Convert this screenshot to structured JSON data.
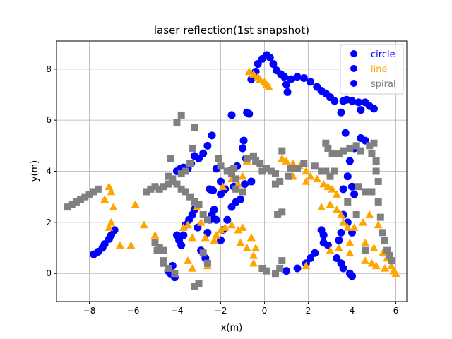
{
  "chart_data": {
    "type": "scatter",
    "title": "laser reflection(1st snapshot)",
    "xlabel": "x(m)",
    "ylabel": "y(m)",
    "xlim": [
      -9.5,
      6.5
    ],
    "ylim": [
      -1.1,
      9.1
    ],
    "xticks": [
      -8,
      -6,
      -4,
      -2,
      0,
      2,
      4,
      6
    ],
    "xtick_labels": [
      "−8",
      "−6",
      "−4",
      "−2",
      "0",
      "2",
      "4",
      "6"
    ],
    "yticks": [
      0,
      2,
      4,
      6,
      8
    ],
    "ytick_labels": [
      "0",
      "2",
      "4",
      "6",
      "8"
    ],
    "grid": true,
    "legend_position": "top-right",
    "series": [
      {
        "name": "circle",
        "marker": "circle",
        "color": "#0000ff",
        "legend_text_color": "#0000ff",
        "points": [
          [
            -7.8,
            0.75
          ],
          [
            -7.6,
            0.85
          ],
          [
            -7.4,
            1.0
          ],
          [
            -7.3,
            1.15
          ],
          [
            -7.1,
            1.35
          ],
          [
            -7.0,
            1.5
          ],
          [
            -6.85,
            1.7
          ],
          [
            -4.4,
            0.1
          ],
          [
            -4.3,
            0.0
          ],
          [
            -4.2,
            0.3
          ],
          [
            -4.1,
            -0.15
          ],
          [
            -4.0,
            1.5
          ],
          [
            -3.9,
            1.3
          ],
          [
            -3.8,
            1.1
          ],
          [
            -3.7,
            1.5
          ],
          [
            -3.6,
            1.9
          ],
          [
            -3.45,
            2.1
          ],
          [
            -3.3,
            2.3
          ],
          [
            -3.2,
            2.5
          ],
          [
            -3.05,
            1.8
          ],
          [
            -2.9,
            0.9
          ],
          [
            -2.7,
            0.6
          ],
          [
            -2.6,
            1.6
          ],
          [
            -2.5,
            2.1
          ],
          [
            -2.4,
            2.3
          ],
          [
            -2.3,
            2.5
          ],
          [
            -2.2,
            2.1
          ],
          [
            -2.0,
            1.3
          ],
          [
            -1.9,
            1.7
          ],
          [
            -1.7,
            2.1
          ],
          [
            -1.5,
            2.6
          ],
          [
            -1.3,
            2.8
          ],
          [
            -1.1,
            2.9
          ],
          [
            -4.0,
            4.0
          ],
          [
            -3.85,
            4.1
          ],
          [
            -3.7,
            4.15
          ],
          [
            -3.5,
            4.1
          ],
          [
            -3.35,
            4.3
          ],
          [
            -3.2,
            4.6
          ],
          [
            -3.0,
            4.5
          ],
          [
            -2.8,
            4.7
          ],
          [
            -2.6,
            5.0
          ],
          [
            -2.4,
            5.4
          ],
          [
            -2.2,
            4.1
          ],
          [
            -2.0,
            3.6
          ],
          [
            -1.8,
            3.3
          ],
          [
            -2.0,
            3.1
          ],
          [
            -1.6,
            4.0
          ],
          [
            -1.4,
            3.4
          ],
          [
            -1.25,
            4.2
          ],
          [
            -1.0,
            4.9
          ],
          [
            -0.95,
            5.2
          ],
          [
            -0.85,
            4.5
          ],
          [
            -2.5,
            3.3
          ],
          [
            -2.35,
            3.25
          ],
          [
            -1.5,
            6.2
          ],
          [
            -0.8,
            6.3
          ],
          [
            -0.7,
            6.25
          ],
          [
            -0.6,
            7.6
          ],
          [
            -0.4,
            7.9
          ],
          [
            -0.3,
            8.2
          ],
          [
            -0.1,
            8.4
          ],
          [
            0.1,
            8.55
          ],
          [
            0.25,
            8.45
          ],
          [
            0.4,
            8.2
          ],
          [
            0.55,
            7.95
          ],
          [
            0.75,
            7.8
          ],
          [
            0.9,
            7.7
          ],
          [
            1.0,
            7.4
          ],
          [
            1.05,
            7.1
          ],
          [
            1.2,
            7.6
          ],
          [
            1.5,
            7.7
          ],
          [
            1.8,
            7.65
          ],
          [
            2.1,
            7.5
          ],
          [
            2.4,
            7.3
          ],
          [
            2.6,
            7.15
          ],
          [
            2.8,
            7.05
          ],
          [
            3.0,
            6.9
          ],
          [
            3.2,
            6.75
          ],
          [
            3.5,
            6.3
          ],
          [
            3.6,
            6.75
          ],
          [
            3.75,
            6.8
          ],
          [
            4.0,
            6.75
          ],
          [
            4.3,
            6.7
          ],
          [
            4.6,
            6.7
          ],
          [
            4.8,
            6.55
          ],
          [
            5.0,
            6.45
          ],
          [
            4.4,
            6.4
          ],
          [
            3.7,
            5.5
          ],
          [
            4.4,
            5.3
          ],
          [
            4.6,
            5.2
          ],
          [
            4.1,
            4.9
          ],
          [
            3.9,
            4.4
          ],
          [
            3.8,
            3.8
          ],
          [
            3.6,
            3.3
          ],
          [
            4.0,
            3.4
          ],
          [
            4.1,
            3.1
          ],
          [
            3.6,
            2.3
          ],
          [
            3.8,
            2.0
          ],
          [
            4.0,
            1.6
          ],
          [
            3.5,
            1.6
          ],
          [
            3.4,
            1.3
          ],
          [
            3.3,
            0.6
          ],
          [
            3.5,
            0.4
          ],
          [
            3.6,
            0.2
          ],
          [
            3.9,
            0.0
          ],
          [
            4.0,
            -0.1
          ],
          [
            2.6,
            1.7
          ],
          [
            2.7,
            1.5
          ],
          [
            2.9,
            1.1
          ],
          [
            2.7,
            1.2
          ],
          [
            2.3,
            0.8
          ],
          [
            2.1,
            0.6
          ],
          [
            1.9,
            0.4
          ],
          [
            1.5,
            0.2
          ],
          [
            1.0,
            0.1
          ],
          [
            -0.9,
            3.5
          ],
          [
            -0.6,
            3.6
          ]
        ]
      },
      {
        "name": "line",
        "marker": "triangle",
        "color": "#ffa500",
        "legend_text_color": "#ffa500",
        "points": [
          [
            -7.3,
            2.9
          ],
          [
            -7.1,
            3.4
          ],
          [
            -7.0,
            3.2
          ],
          [
            -6.9,
            2.6
          ],
          [
            -7.0,
            2.0
          ],
          [
            -7.1,
            1.8
          ],
          [
            -6.6,
            1.1
          ],
          [
            -6.1,
            1.1
          ],
          [
            -5.9,
            2.7
          ],
          [
            -5.5,
            1.9
          ],
          [
            -5.0,
            1.5
          ],
          [
            -3.7,
            1.8
          ],
          [
            -3.5,
            1.9
          ],
          [
            -3.3,
            1.4
          ],
          [
            -3.1,
            2.6
          ],
          [
            -2.9,
            2.0
          ],
          [
            -2.7,
            1.4
          ],
          [
            -3.3,
            0.2
          ],
          [
            -3.5,
            0.5
          ],
          [
            -2.6,
            0.3
          ],
          [
            -2.3,
            1.3
          ],
          [
            -2.2,
            1.5
          ],
          [
            -2.0,
            1.7
          ],
          [
            -1.8,
            1.8
          ],
          [
            -1.5,
            1.9
          ],
          [
            -1.2,
            1.7
          ],
          [
            -1.1,
            1.2
          ],
          [
            -1.0,
            1.8
          ],
          [
            -0.8,
            1.0
          ],
          [
            -0.6,
            1.4
          ],
          [
            -0.5,
            0.7
          ],
          [
            -0.4,
            1.0
          ],
          [
            -0.5,
            0.4
          ],
          [
            -1.9,
            3.4
          ],
          [
            -1.5,
            3.7
          ],
          [
            -1.2,
            3.5
          ],
          [
            -1.0,
            3.8
          ],
          [
            -0.8,
            4.4
          ],
          [
            -0.7,
            7.9
          ],
          [
            -0.5,
            7.8
          ],
          [
            -0.3,
            7.7
          ],
          [
            -0.2,
            7.6
          ],
          [
            0.0,
            7.5
          ],
          [
            0.1,
            7.4
          ],
          [
            0.2,
            7.3
          ],
          [
            0.8,
            4.5
          ],
          [
            1.0,
            4.4
          ],
          [
            1.3,
            4.3
          ],
          [
            1.6,
            4.2
          ],
          [
            1.9,
            4.0
          ],
          [
            2.1,
            3.8
          ],
          [
            2.4,
            3.7
          ],
          [
            2.7,
            3.5
          ],
          [
            2.9,
            3.4
          ],
          [
            3.1,
            3.3
          ],
          [
            3.3,
            3.1
          ],
          [
            1.9,
            3.6
          ],
          [
            1.3,
            3.8
          ],
          [
            2.6,
            2.6
          ],
          [
            3.0,
            2.7
          ],
          [
            3.3,
            2.5
          ],
          [
            3.5,
            2.3
          ],
          [
            3.6,
            2.0
          ],
          [
            3.8,
            1.8
          ],
          [
            3.4,
            1.0
          ],
          [
            3.9,
            1.2
          ],
          [
            3.9,
            0.8
          ],
          [
            4.1,
            1.8
          ],
          [
            4.5,
            2.0
          ],
          [
            4.8,
            2.3
          ],
          [
            5.2,
            1.9
          ],
          [
            4.6,
            1.2
          ],
          [
            5.0,
            1.0
          ],
          [
            4.6,
            0.5
          ],
          [
            4.9,
            0.4
          ],
          [
            5.1,
            0.3
          ],
          [
            5.4,
            0.8
          ],
          [
            5.6,
            0.6
          ],
          [
            5.8,
            0.3
          ],
          [
            5.9,
            0.1
          ],
          [
            6.0,
            0.0
          ],
          [
            5.5,
            0.2
          ],
          [
            1.9,
            0.3
          ],
          [
            3.0,
            0.9
          ]
        ]
      },
      {
        "name": "spiral",
        "marker": "square",
        "color": "#808080",
        "legend_text_color": "#808080",
        "points": [
          [
            -9.0,
            2.6
          ],
          [
            -8.8,
            2.7
          ],
          [
            -8.6,
            2.8
          ],
          [
            -8.4,
            2.9
          ],
          [
            -8.2,
            3.0
          ],
          [
            -8.0,
            3.1
          ],
          [
            -7.8,
            3.2
          ],
          [
            -7.6,
            3.3
          ],
          [
            -5.4,
            3.2
          ],
          [
            -5.2,
            3.3
          ],
          [
            -5.0,
            3.4
          ],
          [
            -4.8,
            3.3
          ],
          [
            -4.6,
            3.4
          ],
          [
            -4.4,
            3.5
          ],
          [
            -4.2,
            3.6
          ],
          [
            -4.0,
            3.5
          ],
          [
            -3.8,
            3.3
          ],
          [
            -3.6,
            3.2
          ],
          [
            -3.4,
            3.0
          ],
          [
            -3.2,
            2.8
          ],
          [
            -3.0,
            2.7
          ],
          [
            -2.8,
            2.3
          ],
          [
            -2.6,
            2.1
          ],
          [
            -4.1,
            0.0
          ],
          [
            -4.4,
            0.2
          ],
          [
            -4.6,
            0.4
          ],
          [
            -4.9,
            0.9
          ],
          [
            -5.0,
            1.2
          ],
          [
            -4.8,
            1.0
          ],
          [
            -4.6,
            0.9
          ],
          [
            -4.6,
            0.5
          ],
          [
            -3.0,
            -0.4
          ],
          [
            -3.2,
            -0.5
          ],
          [
            -2.6,
            0.4
          ],
          [
            -2.8,
            0.8
          ],
          [
            -4.4,
            3.8
          ],
          [
            -4.2,
            3.7
          ],
          [
            -3.8,
            3.9
          ],
          [
            -3.6,
            4.0
          ],
          [
            -4.3,
            4.5
          ],
          [
            -3.4,
            4.3
          ],
          [
            -3.3,
            4.9
          ],
          [
            -3.2,
            5.7
          ],
          [
            -4.0,
            5.9
          ],
          [
            -3.8,
            6.2
          ],
          [
            -2.1,
            4.5
          ],
          [
            -2.0,
            4.2
          ],
          [
            -1.7,
            4.0
          ],
          [
            -1.5,
            3.9
          ],
          [
            -1.4,
            4.1
          ],
          [
            -1.3,
            3.7
          ],
          [
            -1.3,
            3.3
          ],
          [
            -1.0,
            3.2
          ],
          [
            -0.8,
            4.5
          ],
          [
            -0.5,
            4.6
          ],
          [
            -0.4,
            4.4
          ],
          [
            -0.2,
            4.3
          ],
          [
            -0.1,
            4.0
          ],
          [
            0.1,
            4.1
          ],
          [
            0.3,
            4.0
          ],
          [
            0.5,
            3.9
          ],
          [
            0.8,
            4.8
          ],
          [
            0.5,
            3.5
          ],
          [
            0.7,
            3.6
          ],
          [
            1.1,
            3.8
          ],
          [
            -0.1,
            0.2
          ],
          [
            0.1,
            0.1
          ],
          [
            0.5,
            0.0
          ],
          [
            0.7,
            0.2
          ],
          [
            0.8,
            0.5
          ],
          [
            0.6,
            2.3
          ],
          [
            0.8,
            2.4
          ],
          [
            1.2,
            4.1
          ],
          [
            1.5,
            4.1
          ],
          [
            1.8,
            4.3
          ],
          [
            2.3,
            4.2
          ],
          [
            2.6,
            4.0
          ],
          [
            2.8,
            4.0
          ],
          [
            2.9,
            4.9
          ],
          [
            2.8,
            5.1
          ],
          [
            3.1,
            4.7
          ],
          [
            3.4,
            4.7
          ],
          [
            3.6,
            4.8
          ],
          [
            3.9,
            4.9
          ],
          [
            4.2,
            5.0
          ],
          [
            4.4,
            4.8
          ],
          [
            4.8,
            5.0
          ],
          [
            4.9,
            4.7
          ],
          [
            5.0,
            5.1
          ],
          [
            5.1,
            4.4
          ],
          [
            5.1,
            4.0
          ],
          [
            5.2,
            3.6
          ],
          [
            4.3,
            3.4
          ],
          [
            4.6,
            3.2
          ],
          [
            4.9,
            3.2
          ],
          [
            5.2,
            2.8
          ],
          [
            5.3,
            2.2
          ],
          [
            5.4,
            1.6
          ],
          [
            5.5,
            1.3
          ],
          [
            5.6,
            0.9
          ],
          [
            5.7,
            0.7
          ],
          [
            5.8,
            0.5
          ],
          [
            3.2,
            4.0
          ],
          [
            3.0,
            3.8
          ],
          [
            3.8,
            2.8
          ],
          [
            4.2,
            2.3
          ],
          [
            4.6,
            0.9
          ]
        ]
      }
    ]
  }
}
